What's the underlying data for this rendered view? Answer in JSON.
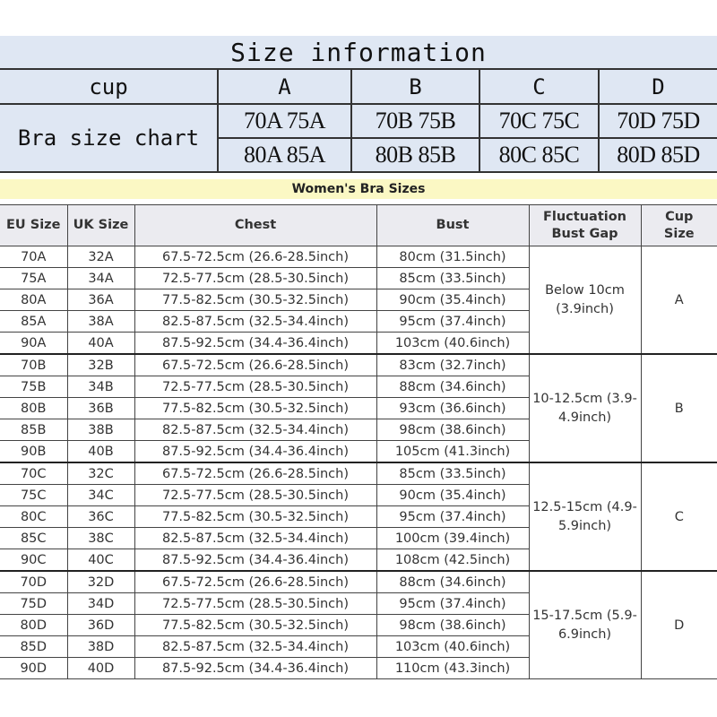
{
  "size_info": {
    "title": "Size information",
    "cup_label": "cup",
    "chart_label": "Bra size chart",
    "cups": [
      {
        "cup": "A",
        "row1": "70A 75A",
        "row2": "80A 85A"
      },
      {
        "cup": "B",
        "row1": "70B 75B",
        "row2": "80B 85B"
      },
      {
        "cup": "C",
        "row1": "70C 75C",
        "row2": "80C 85C"
      },
      {
        "cup": "D",
        "row1": "70D 75D",
        "row2": "80D 85D"
      }
    ]
  },
  "banner": "Women's Bra Sizes",
  "table": {
    "headers": [
      "EU Size",
      "UK Size",
      "Chest",
      "Bust",
      "Fluctuation Bust Gap",
      "Cup Size"
    ],
    "groups": [
      {
        "gap": "Below 10cm (3.9inch)",
        "cup": "A",
        "rows": [
          [
            "70A",
            "32A",
            "67.5-72.5cm (26.6-28.5inch)",
            "80cm (31.5inch)"
          ],
          [
            "75A",
            "34A",
            "72.5-77.5cm (28.5-30.5inch)",
            "85cm (33.5inch)"
          ],
          [
            "80A",
            "36A",
            "77.5-82.5cm (30.5-32.5inch)",
            "90cm (35.4inch)"
          ],
          [
            "85A",
            "38A",
            "82.5-87.5cm (32.5-34.4inch)",
            "95cm (37.4inch)"
          ],
          [
            "90A",
            "40A",
            "87.5-92.5cm (34.4-36.4inch)",
            "103cm (40.6inch)"
          ]
        ]
      },
      {
        "gap": "10-12.5cm (3.9-4.9inch)",
        "cup": "B",
        "rows": [
          [
            "70B",
            "32B",
            "67.5-72.5cm (26.6-28.5inch)",
            "83cm (32.7inch)"
          ],
          [
            "75B",
            "34B",
            "72.5-77.5cm (28.5-30.5inch)",
            "88cm (34.6inch)"
          ],
          [
            "80B",
            "36B",
            "77.5-82.5cm (30.5-32.5inch)",
            "93cm (36.6inch)"
          ],
          [
            "85B",
            "38B",
            "82.5-87.5cm (32.5-34.4inch)",
            "98cm (38.6inch)"
          ],
          [
            "90B",
            "40B",
            "87.5-92.5cm (34.4-36.4inch)",
            "105cm (41.3inch)"
          ]
        ]
      },
      {
        "gap": "12.5-15cm (4.9-5.9inch)",
        "cup": "C",
        "rows": [
          [
            "70C",
            "32C",
            "67.5-72.5cm (26.6-28.5inch)",
            "85cm (33.5inch)"
          ],
          [
            "75C",
            "34C",
            "72.5-77.5cm (28.5-30.5inch)",
            "90cm (35.4inch)"
          ],
          [
            "80C",
            "36C",
            "77.5-82.5cm (30.5-32.5inch)",
            "95cm (37.4inch)"
          ],
          [
            "85C",
            "38C",
            "82.5-87.5cm (32.5-34.4inch)",
            "100cm (39.4inch)"
          ],
          [
            "90C",
            "40C",
            "87.5-92.5cm (34.4-36.4inch)",
            "108cm (42.5inch)"
          ]
        ]
      },
      {
        "gap": "15-17.5cm (5.9-6.9inch)",
        "cup": "D",
        "rows": [
          [
            "70D",
            "32D",
            "67.5-72.5cm (26.6-28.5inch)",
            "88cm (34.6inch)"
          ],
          [
            "75D",
            "34D",
            "72.5-77.5cm (28.5-30.5inch)",
            "95cm (37.4inch)"
          ],
          [
            "80D",
            "36D",
            "77.5-82.5cm (30.5-32.5inch)",
            "98cm (38.6inch)"
          ],
          [
            "85D",
            "38D",
            "82.5-87.5cm (32.5-34.4inch)",
            "103cm (40.6inch)"
          ],
          [
            "90D",
            "40D",
            "87.5-92.5cm (34.4-36.4inch)",
            "110cm (43.3inch)"
          ]
        ]
      }
    ]
  }
}
